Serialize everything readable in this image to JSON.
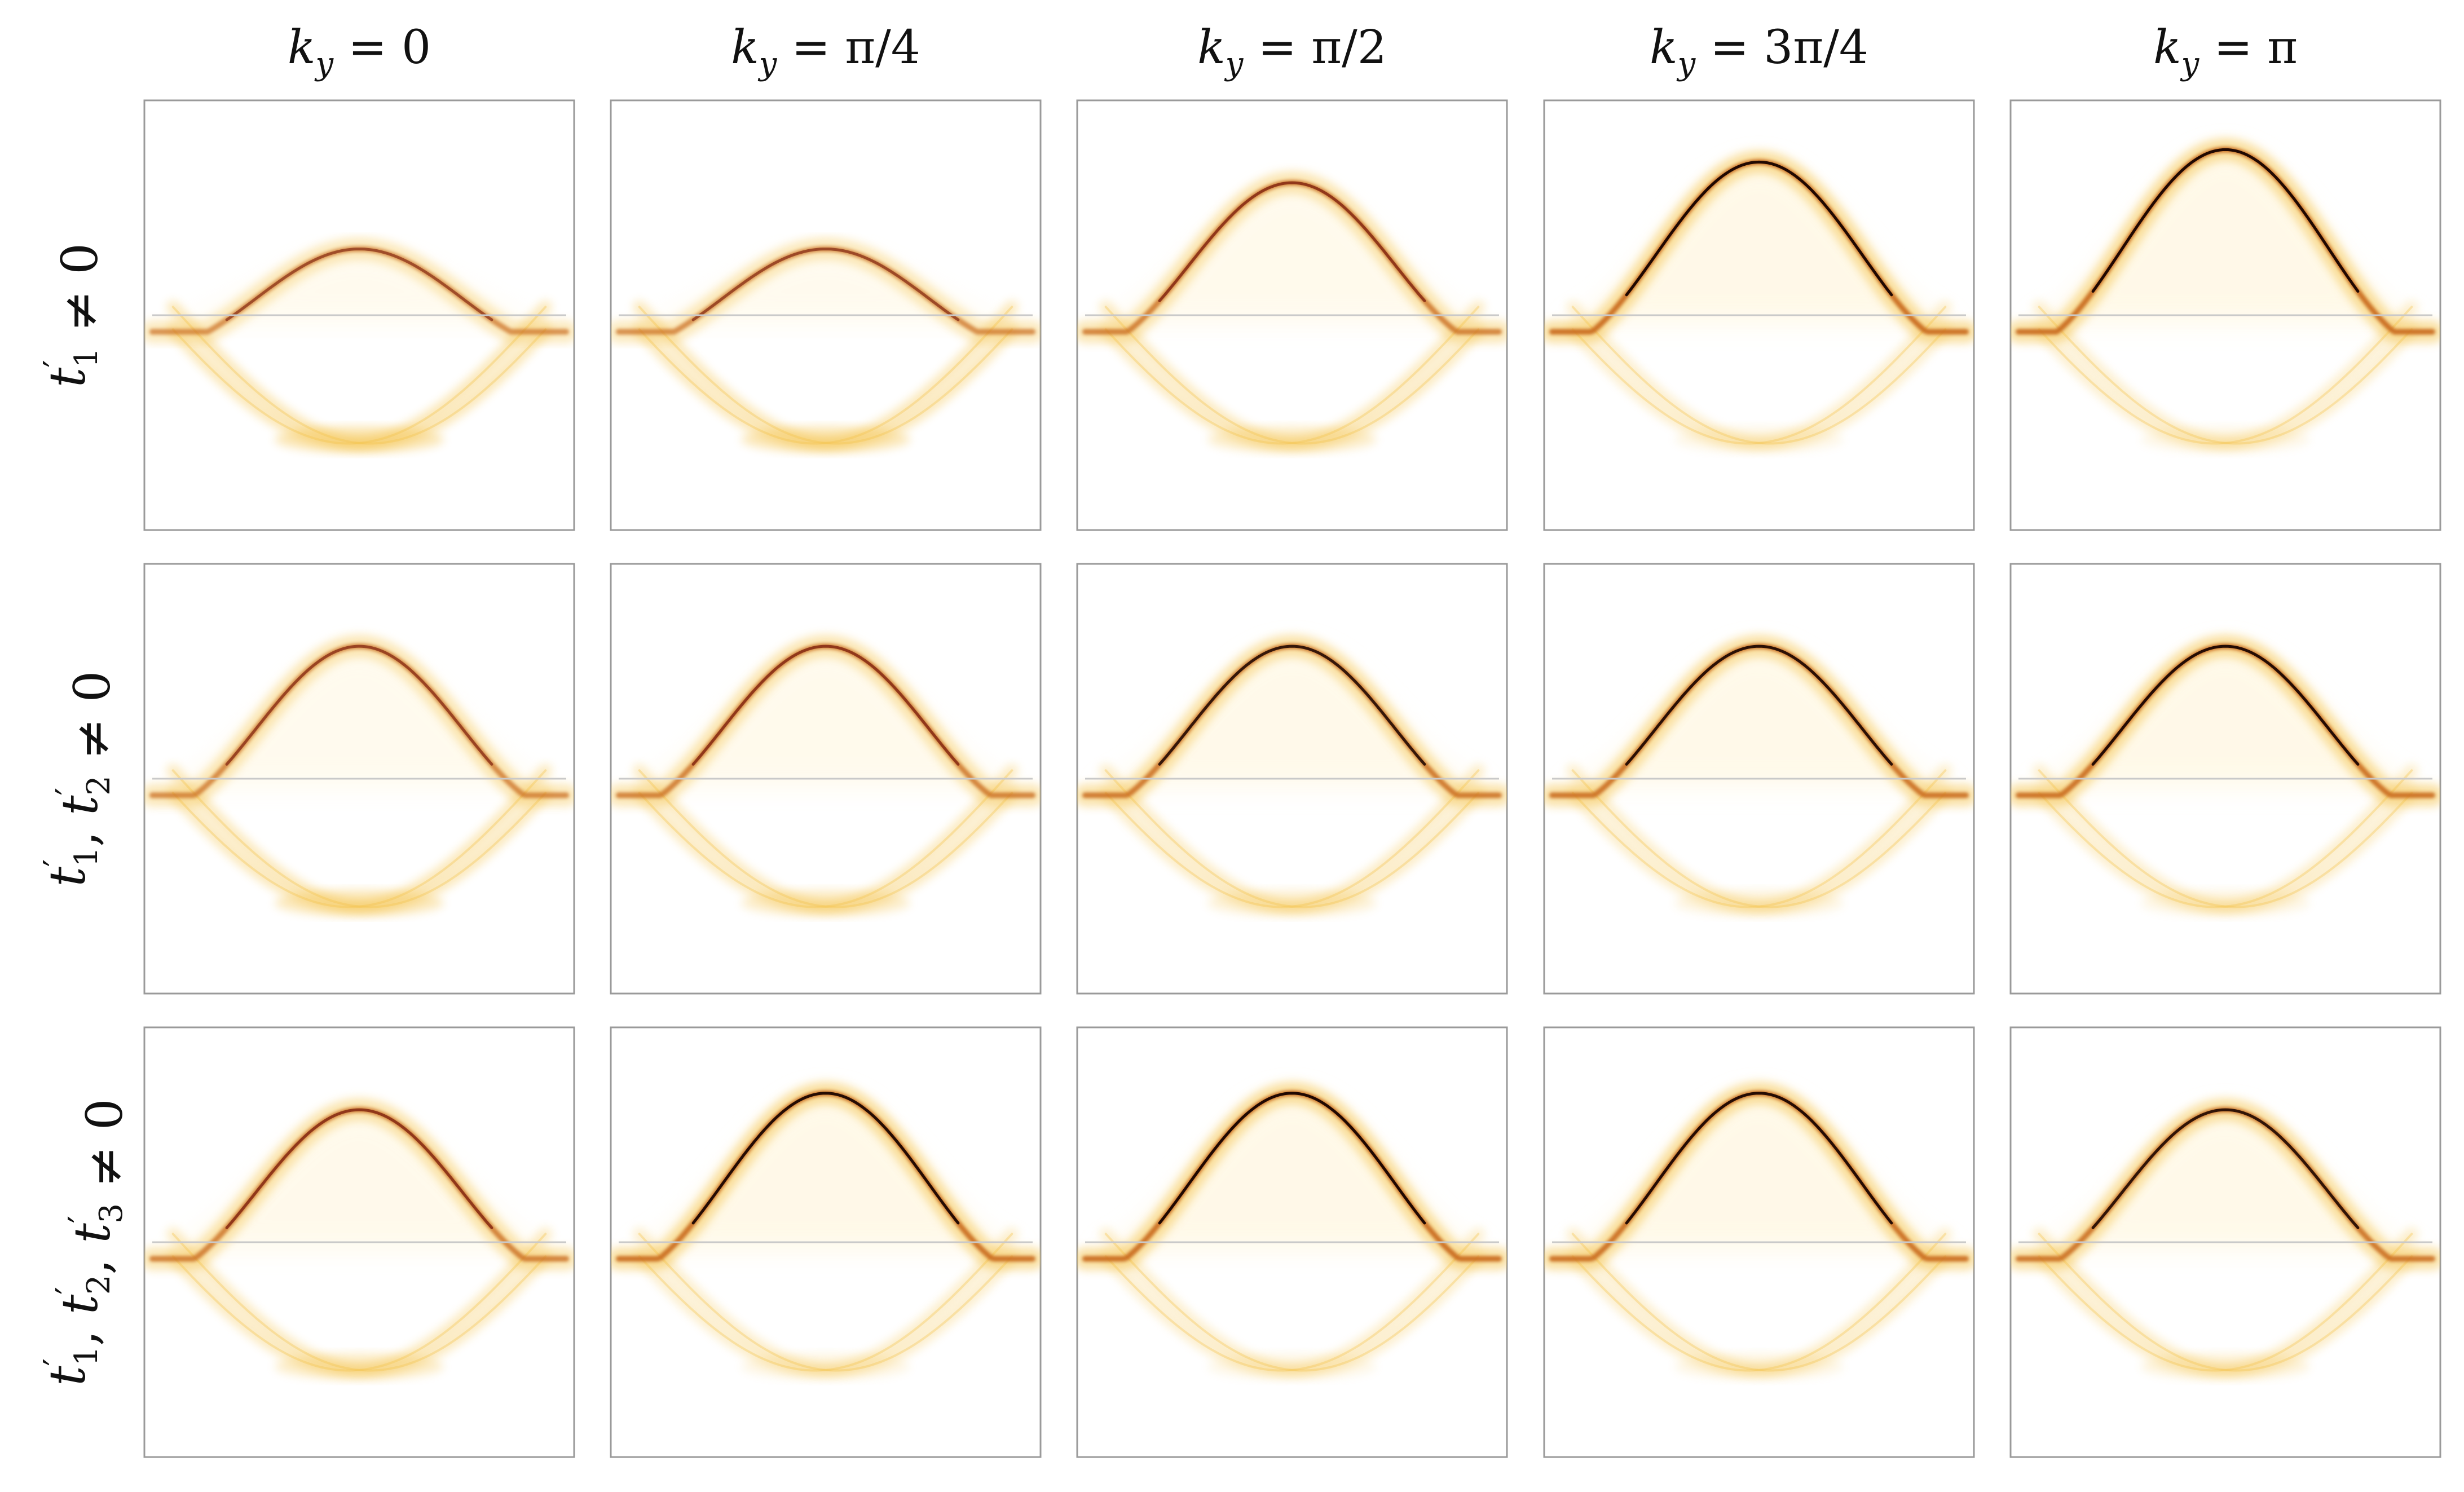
{
  "figure": {
    "background": "#ffffff",
    "colormap": [
      "#ffffff",
      "#fff4d6",
      "#f4c24a",
      "#c96b1c",
      "#7a1d0c",
      "#1a0400"
    ]
  },
  "column_headers": [
    {
      "base": "k",
      "sub": "y",
      "rest": " = 0"
    },
    {
      "base": "k",
      "sub": "y",
      "rest": " = π/4"
    },
    {
      "base": "k",
      "sub": "y",
      "rest": " = π/2"
    },
    {
      "base": "k",
      "sub": "y",
      "rest": " = 3π/4"
    },
    {
      "base": "k",
      "sub": "y",
      "rest": " = π"
    }
  ],
  "row_headers": [
    {
      "terms": [
        [
          "t",
          "′",
          "1"
        ]
      ],
      "rest": " ≠ 0"
    },
    {
      "terms": [
        [
          "t",
          "′",
          "1"
        ],
        [
          "t",
          "′",
          "2"
        ]
      ],
      "rest": " ≠ 0"
    },
    {
      "terms": [
        [
          "t",
          "′",
          "1"
        ],
        [
          "t",
          "′",
          "2"
        ],
        [
          "t",
          "′",
          "3"
        ]
      ],
      "rest": " ≠ 0"
    }
  ],
  "chart_data": {
    "type": "heatmap",
    "description_of_axes": "",
    "xlim": [
      0,
      1
    ],
    "ylim": [
      0,
      1
    ],
    "fermi_level": 0.5,
    "panels": [
      [
        {
          "edge_y": 0.66,
          "min_y": 0.22,
          "sharp": 0.35,
          "weight": 0.7,
          "flat_top": true
        },
        {
          "edge_y": 0.66,
          "min_y": 0.22,
          "sharp": 0.4,
          "weight": 0.7,
          "flat_top": true
        },
        {
          "edge_y": 0.82,
          "min_y": 0.22,
          "sharp": 0.6,
          "weight": 0.8,
          "flat_top": false
        },
        {
          "edge_y": 0.87,
          "min_y": 0.22,
          "sharp": 0.95,
          "weight": 1.0,
          "flat_top": false
        },
        {
          "edge_y": 0.9,
          "min_y": 0.22,
          "sharp": 0.95,
          "weight": 1.0,
          "flat_top": false
        }
      ],
      [
        {
          "edge_y": 0.82,
          "min_y": 0.22,
          "sharp": 0.45,
          "weight": 0.75,
          "flat_top": false
        },
        {
          "edge_y": 0.82,
          "min_y": 0.22,
          "sharp": 0.6,
          "weight": 0.8,
          "flat_top": false
        },
        {
          "edge_y": 0.82,
          "min_y": 0.22,
          "sharp": 0.75,
          "weight": 0.9,
          "flat_top": false
        },
        {
          "edge_y": 0.82,
          "min_y": 0.22,
          "sharp": 0.85,
          "weight": 0.95,
          "flat_top": false
        },
        {
          "edge_y": 0.82,
          "min_y": 0.22,
          "sharp": 0.9,
          "weight": 1.0,
          "flat_top": false
        }
      ],
      [
        {
          "edge_y": 0.82,
          "min_y": 0.22,
          "sharp": 0.6,
          "weight": 0.85,
          "flat_top": false
        },
        {
          "edge_y": 0.86,
          "min_y": 0.22,
          "sharp": 0.9,
          "weight": 1.0,
          "flat_top": false
        },
        {
          "edge_y": 0.86,
          "min_y": 0.22,
          "sharp": 0.95,
          "weight": 1.0,
          "flat_top": false
        },
        {
          "edge_y": 0.86,
          "min_y": 0.22,
          "sharp": 0.9,
          "weight": 1.0,
          "flat_top": false
        },
        {
          "edge_y": 0.82,
          "min_y": 0.22,
          "sharp": 0.8,
          "weight": 0.95,
          "flat_top": false
        }
      ]
    ]
  }
}
